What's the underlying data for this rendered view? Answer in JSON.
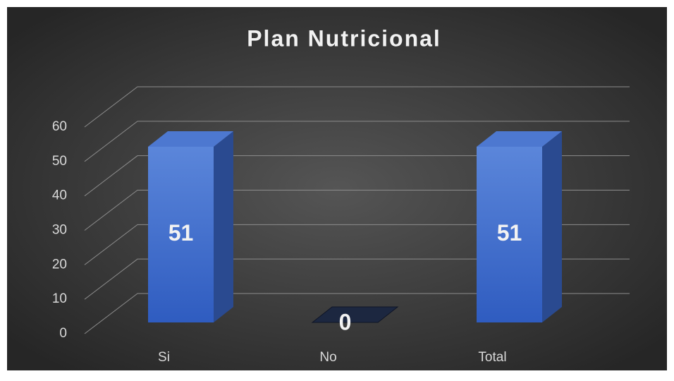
{
  "chart_data": {
    "type": "bar",
    "title": "Plan Nutricional",
    "categories": [
      "Si",
      "No",
      "Total"
    ],
    "values": [
      51,
      0,
      51
    ],
    "color": "#3f6fd0",
    "ylim": [
      0,
      60
    ],
    "yticks": [
      0,
      10,
      20,
      30,
      40,
      50,
      60
    ],
    "grid": true
  }
}
